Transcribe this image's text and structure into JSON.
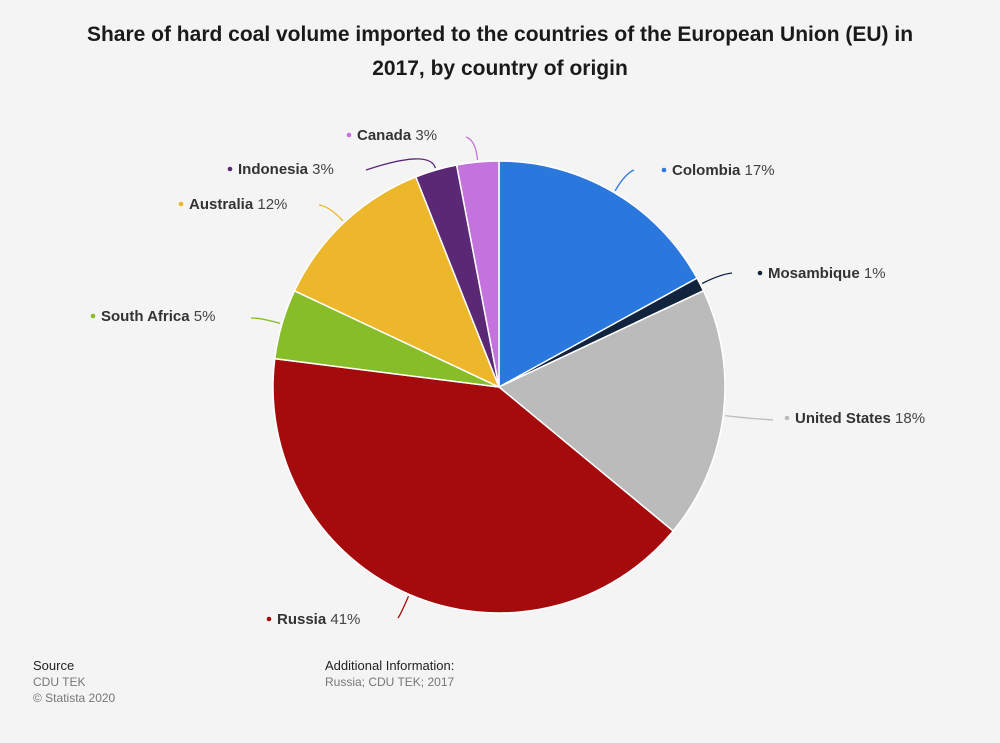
{
  "chart_data": {
    "type": "pie",
    "title": "Share of hard coal volume imported to the countries of the European Union (EU) in 2017, by country of origin",
    "unit": "%",
    "slices": [
      {
        "name": "Colombia",
        "value": 17,
        "label": "17%",
        "color": "#2a77de"
      },
      {
        "name": "Mosambique",
        "value": 1,
        "label": "1%",
        "color": "#12233d"
      },
      {
        "name": "United States",
        "value": 18,
        "label": "18%",
        "color": "#bbbbbb"
      },
      {
        "name": "Russia",
        "value": 41,
        "label": "41%",
        "color": "#a50a0c"
      },
      {
        "name": "South Africa",
        "value": 5,
        "label": "5%",
        "color": "#86bd28"
      },
      {
        "name": "Australia",
        "value": 12,
        "label": "12%",
        "color": "#ecb72a"
      },
      {
        "name": "Indonesia",
        "value": 3,
        "label": "3%",
        "color": "#5b2876"
      },
      {
        "name": "Canada",
        "value": 3,
        "label": "3%",
        "color": "#c472de"
      }
    ]
  },
  "footer": {
    "source_heading": "Source",
    "source_text": "CDU TEK",
    "copyright": "© Statista 2020",
    "additional_heading": "Additional Information:",
    "additional_text": "Russia; CDU TEK; 2017"
  }
}
